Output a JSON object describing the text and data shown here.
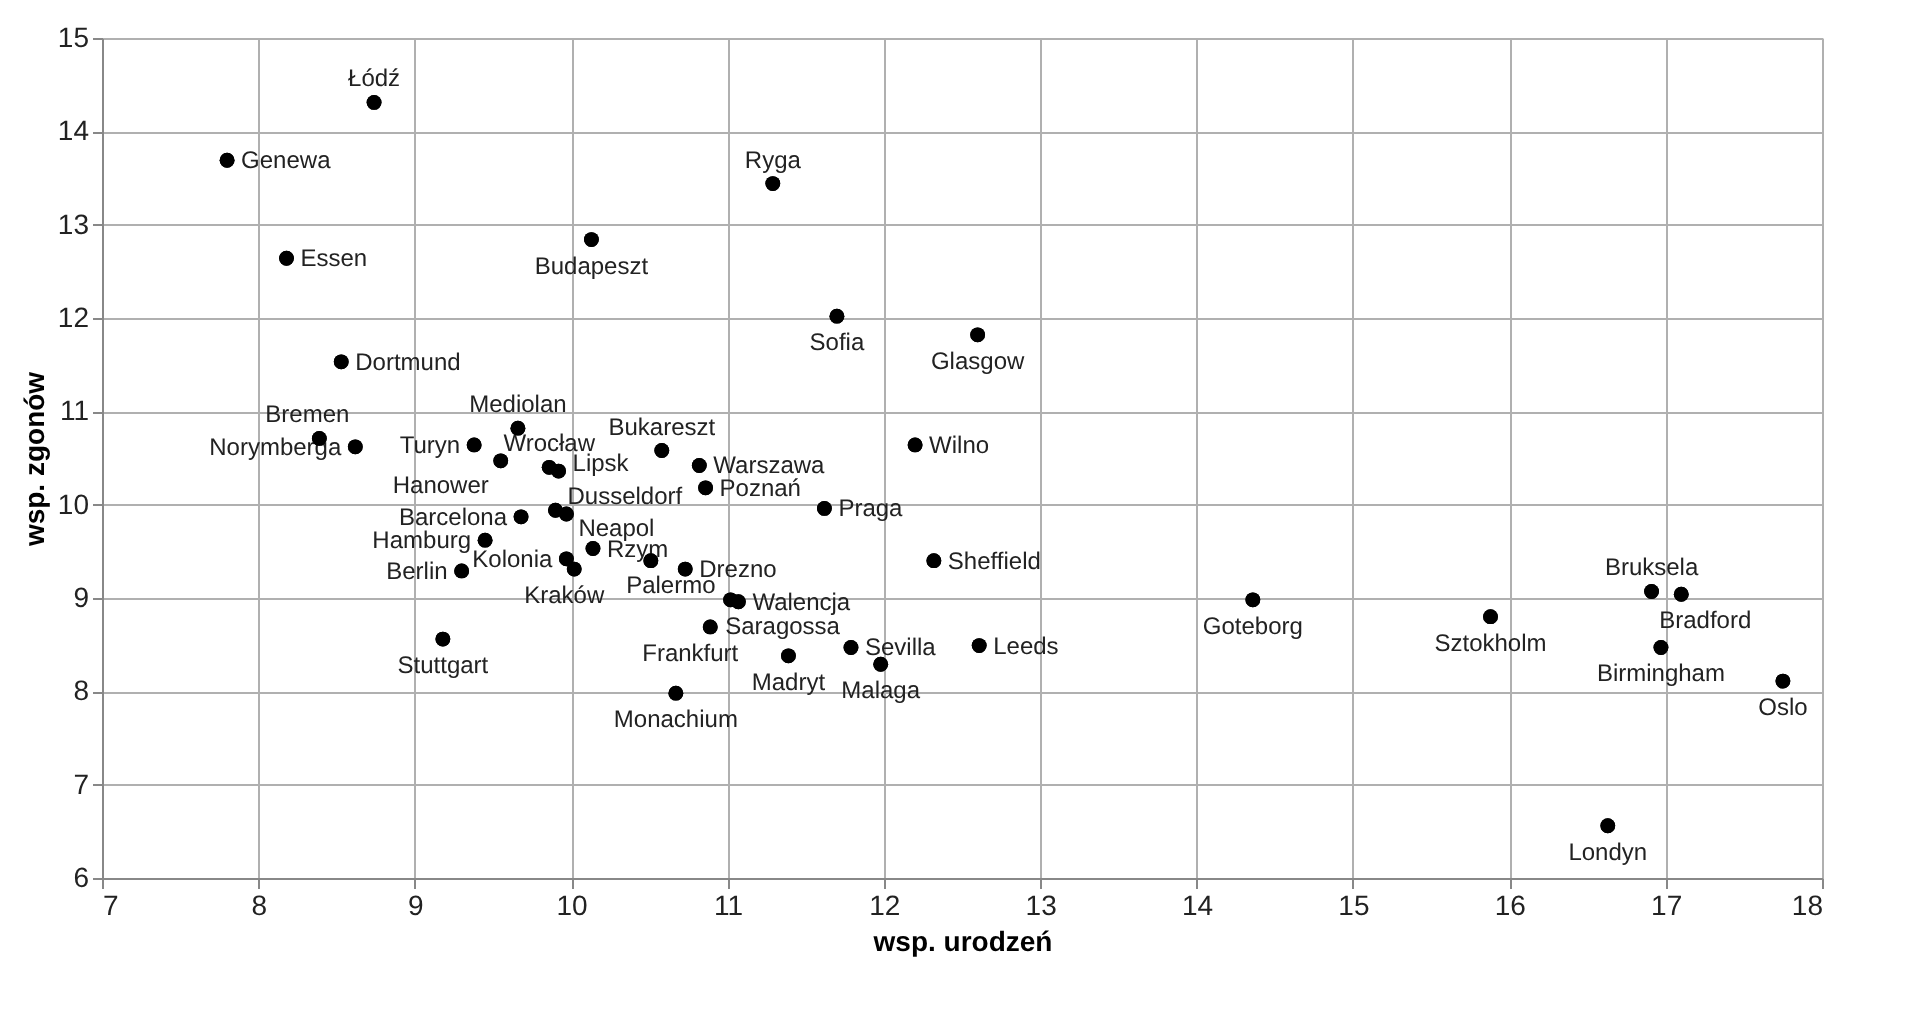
{
  "chart_data": {
    "type": "scatter",
    "xlabel": "wsp. urodzeń",
    "ylabel": "wsp. zgonów",
    "xlim": [
      7,
      18
    ],
    "xticks": [
      7,
      8,
      9,
      10,
      11,
      12,
      13,
      14,
      15,
      16,
      17,
      18
    ],
    "ylim": [
      6,
      15
    ],
    "yticks": [
      6,
      7,
      8,
      9,
      10,
      11,
      12,
      13,
      14,
      15
    ],
    "grid": true,
    "marker": "circle",
    "legend": false,
    "series": [
      {
        "color": "#000000",
        "x": [
          8.74,
          7.8,
          11.29,
          8.18,
          10.13,
          11.7,
          12.6,
          8.53,
          8.39,
          8.62,
          9.38,
          9.66,
          9.55,
          9.86,
          9.92,
          10.58,
          10.82,
          10.86,
          9.68,
          9.9,
          9.97,
          9.45,
          10.14,
          9.97,
          10.02,
          9.3,
          10.51,
          10.73,
          11.02,
          11.07,
          10.89,
          9.18,
          10.67,
          12.2,
          11.62,
          12.32,
          11.79,
          12.61,
          11.39,
          11.98,
          14.36,
          15.88,
          16.91,
          17.1,
          16.97,
          17.75,
          16.63
        ],
        "values": [
          14.31,
          13.69,
          13.44,
          12.64,
          12.84,
          12.02,
          11.82,
          11.53,
          10.71,
          10.62,
          10.64,
          10.82,
          10.47,
          10.4,
          10.36,
          10.58,
          10.42,
          10.18,
          9.87,
          9.94,
          9.9,
          9.62,
          9.53,
          9.42,
          9.31,
          9.29,
          9.4,
          9.31,
          8.98,
          8.96,
          8.69,
          8.56,
          7.98,
          10.64,
          9.96,
          9.4,
          8.47,
          8.49,
          8.38,
          8.29,
          8.98,
          8.8,
          9.07,
          9.04,
          8.47,
          8.11,
          6.56
        ]
      }
    ],
    "annotations": [
      {
        "text": "Łódź",
        "x": 8.74,
        "y": 14.31
      },
      {
        "text": "Genewa",
        "x": 7.8,
        "y": 13.69
      },
      {
        "text": "Ryga",
        "x": 11.29,
        "y": 13.44
      },
      {
        "text": "Essen",
        "x": 8.18,
        "y": 12.64
      },
      {
        "text": "Budapeszt",
        "x": 10.13,
        "y": 12.84
      },
      {
        "text": "Sofia",
        "x": 11.7,
        "y": 12.02
      },
      {
        "text": "Glasgow",
        "x": 12.6,
        "y": 11.82
      },
      {
        "text": "Dortmund",
        "x": 8.53,
        "y": 11.53
      },
      {
        "text": "Bremen",
        "x": 8.39,
        "y": 10.71
      },
      {
        "text": "Norymberga",
        "x": 8.62,
        "y": 10.62
      },
      {
        "text": "Turyn",
        "x": 9.38,
        "y": 10.64
      },
      {
        "text": "Mediolan",
        "x": 9.66,
        "y": 10.82
      },
      {
        "text": "Hanower",
        "x": 9.55,
        "y": 10.47
      },
      {
        "text": "Wrocław",
        "x": 9.86,
        "y": 10.4
      },
      {
        "text": "Lipsk",
        "x": 9.92,
        "y": 10.36
      },
      {
        "text": "Bukareszt",
        "x": 10.58,
        "y": 10.58
      },
      {
        "text": "Warszawa",
        "x": 10.82,
        "y": 10.42
      },
      {
        "text": "Poznań",
        "x": 10.86,
        "y": 10.18
      },
      {
        "text": "Barcelona",
        "x": 9.68,
        "y": 9.87
      },
      {
        "text": "Dusseldorf",
        "x": 9.9,
        "y": 9.94
      },
      {
        "text": "Neapol",
        "x": 9.97,
        "y": 9.9
      },
      {
        "text": "Hamburg",
        "x": 9.45,
        "y": 9.62
      },
      {
        "text": "Rzym",
        "x": 10.14,
        "y": 9.53
      },
      {
        "text": "Kolonia",
        "x": 9.97,
        "y": 9.42
      },
      {
        "text": "Kraków",
        "x": 10.02,
        "y": 9.31
      },
      {
        "text": "Berlin",
        "x": 9.3,
        "y": 9.29
      },
      {
        "text": "Palermo",
        "x": 10.51,
        "y": 9.4
      },
      {
        "text": "Drezno",
        "x": 10.73,
        "y": 9.31
      },
      {
        "text": "Saragossa",
        "x": 11.02,
        "y": 8.98
      },
      {
        "text": "Walencja",
        "x": 11.07,
        "y": 8.96
      },
      {
        "text": "Frankfurt",
        "x": 10.89,
        "y": 8.69
      },
      {
        "text": "Stuttgart",
        "x": 9.18,
        "y": 8.56
      },
      {
        "text": "Monachium",
        "x": 10.67,
        "y": 7.98
      },
      {
        "text": "Wilno",
        "x": 12.2,
        "y": 10.64
      },
      {
        "text": "Praga",
        "x": 11.62,
        "y": 9.96
      },
      {
        "text": "Sheffield",
        "x": 12.32,
        "y": 9.4
      },
      {
        "text": "Sevilla",
        "x": 11.79,
        "y": 8.47
      },
      {
        "text": "Leeds",
        "x": 12.61,
        "y": 8.49
      },
      {
        "text": "Madryt",
        "x": 11.39,
        "y": 8.38
      },
      {
        "text": "Malaga",
        "x": 11.98,
        "y": 8.29
      },
      {
        "text": "Goteborg",
        "x": 14.36,
        "y": 8.98
      },
      {
        "text": "Sztokholm",
        "x": 15.88,
        "y": 8.8
      },
      {
        "text": "Bruksela",
        "x": 16.91,
        "y": 9.07
      },
      {
        "text": "Bradford",
        "x": 17.1,
        "y": 9.04
      },
      {
        "text": "Birmingham",
        "x": 16.97,
        "y": 8.47
      },
      {
        "text": "Oslo",
        "x": 17.75,
        "y": 8.11
      },
      {
        "text": "Londyn",
        "x": 16.63,
        "y": 6.56
      }
    ]
  }
}
